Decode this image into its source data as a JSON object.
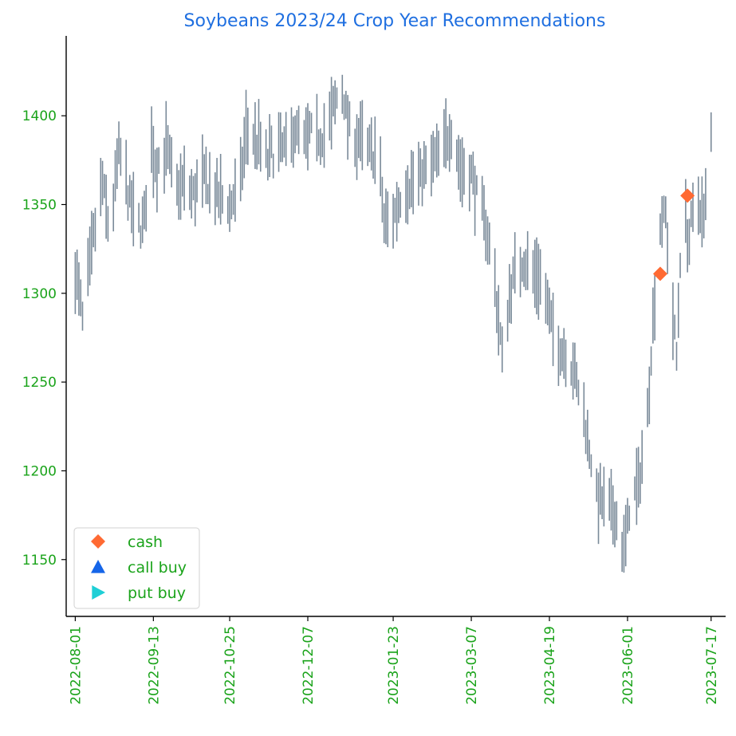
{
  "colors": {
    "title": "#1f6fe0",
    "ticks": "#1aa31a",
    "bars": "#7a8a99",
    "cash": "#ff6a33",
    "call_buy": "#1565e8",
    "put_buy": "#1ecfd6"
  },
  "chart_data": {
    "type": "hlc_bar",
    "title": "Soybeans 2023/24 Crop Year Recommendations",
    "xlabel": "",
    "ylabel": "",
    "xlim": [
      "2022-07-27",
      "2023-07-25"
    ],
    "ylim": [
      1118,
      1445
    ],
    "x_ticks": [
      "2022-08-01",
      "2022-09-13",
      "2022-10-25",
      "2022-12-07",
      "2023-01-23",
      "2023-03-07",
      "2023-04-19",
      "2023-06-01",
      "2023-07-17"
    ],
    "y_ticks": [
      1150,
      1200,
      1250,
      1300,
      1350,
      1400
    ],
    "grid": false,
    "legend_position": "lower-left",
    "price_series": {
      "start_date": "2022-08-01",
      "end_date": "2023-07-17",
      "anchors": [
        [
          "2022-08-01",
          1313
        ],
        [
          "2022-08-05",
          1285
        ],
        [
          "2022-08-12",
          1338
        ],
        [
          "2022-08-16",
          1362
        ],
        [
          "2022-08-20",
          1333
        ],
        [
          "2022-08-25",
          1380
        ],
        [
          "2022-08-29",
          1362
        ],
        [
          "2022-09-03",
          1337
        ],
        [
          "2022-09-08",
          1340
        ],
        [
          "2022-09-12",
          1382
        ],
        [
          "2022-09-15",
          1370
        ],
        [
          "2022-09-20",
          1382
        ],
        [
          "2022-09-25",
          1358
        ],
        [
          "2022-09-30",
          1362
        ],
        [
          "2022-10-05",
          1355
        ],
        [
          "2022-10-10",
          1365
        ],
        [
          "2022-10-15",
          1360
        ],
        [
          "2022-10-20",
          1352
        ],
        [
          "2022-10-25",
          1350
        ],
        [
          "2022-10-30",
          1355
        ],
        [
          "2022-11-03",
          1390
        ],
        [
          "2022-11-10",
          1385
        ],
        [
          "2022-11-15",
          1375
        ],
        [
          "2022-11-20",
          1383
        ],
        [
          "2022-11-25",
          1380
        ],
        [
          "2022-11-30",
          1393
        ],
        [
          "2022-12-05",
          1385
        ],
        [
          "2022-12-10",
          1390
        ],
        [
          "2022-12-15",
          1388
        ],
        [
          "2022-12-20",
          1398
        ],
        [
          "2022-12-25",
          1418
        ],
        [
          "2022-12-30",
          1392
        ],
        [
          "2023-01-05",
          1385
        ],
        [
          "2023-01-10",
          1380
        ],
        [
          "2023-01-15",
          1378
        ],
        [
          "2023-01-18",
          1340
        ],
        [
          "2023-01-23",
          1343
        ],
        [
          "2023-01-28",
          1358
        ],
        [
          "2023-02-05",
          1366
        ],
        [
          "2023-02-12",
          1370
        ],
        [
          "2023-02-18",
          1380
        ],
        [
          "2023-02-24",
          1393
        ],
        [
          "2023-03-01",
          1370
        ],
        [
          "2023-03-07",
          1368
        ],
        [
          "2023-03-10",
          1355
        ],
        [
          "2023-03-15",
          1340
        ],
        [
          "2023-03-20",
          1305
        ],
        [
          "2023-03-24",
          1265
        ],
        [
          "2023-03-28",
          1300
        ],
        [
          "2023-04-01",
          1315
        ],
        [
          "2023-04-05",
          1318
        ],
        [
          "2023-04-10",
          1312
        ],
        [
          "2023-04-15",
          1310
        ],
        [
          "2023-04-19",
          1285
        ],
        [
          "2023-04-24",
          1270
        ],
        [
          "2023-04-30",
          1265
        ],
        [
          "2023-05-05",
          1245
        ],
        [
          "2023-05-10",
          1220
        ],
        [
          "2023-05-15",
          1185
        ],
        [
          "2023-05-20",
          1180
        ],
        [
          "2023-05-25",
          1175
        ],
        [
          "2023-05-30",
          1155
        ],
        [
          "2023-06-03",
          1185
        ],
        [
          "2023-06-07",
          1190
        ],
        [
          "2023-06-12",
          1235
        ],
        [
          "2023-06-16",
          1300
        ],
        [
          "2023-06-19",
          1340
        ],
        [
          "2023-06-22",
          1345
        ],
        [
          "2023-06-25",
          1295
        ],
        [
          "2023-06-28",
          1265
        ],
        [
          "2023-07-01",
          1350
        ],
        [
          "2023-07-05",
          1330
        ],
        [
          "2023-07-09",
          1355
        ],
        [
          "2023-07-13",
          1340
        ],
        [
          "2023-07-17",
          1390
        ]
      ]
    },
    "series": [
      {
        "name": "cash",
        "marker": "diamond",
        "points": [
          {
            "x": "2023-06-19",
            "y": 1311
          },
          {
            "x": "2023-07-04",
            "y": 1355
          }
        ]
      },
      {
        "name": "call buy",
        "marker": "triangle-up",
        "points": []
      },
      {
        "name": "put buy",
        "marker": "triangle-right",
        "points": []
      }
    ]
  }
}
